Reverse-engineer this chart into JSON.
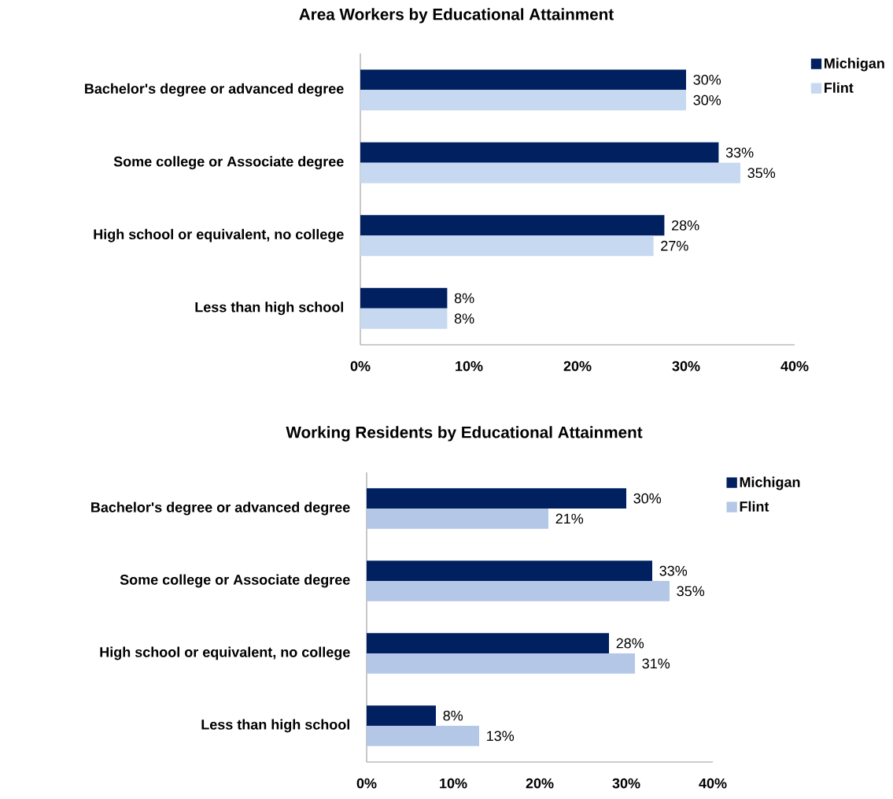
{
  "chart_data": [
    {
      "type": "bar",
      "orientation": "horizontal",
      "title": "Area Workers by Educational Attainment",
      "categories": [
        "Bachelor's degree or advanced degree",
        "Some college or Associate degree",
        "High school or equivalent, no college",
        "Less than high school"
      ],
      "series": [
        {
          "name": "Michigan",
          "color": "#002060",
          "values": [
            30,
            33,
            28,
            8
          ],
          "value_labels": [
            "30%",
            "33%",
            "28%",
            "8%"
          ]
        },
        {
          "name": "Flint",
          "color": "#c6d9f1",
          "values": [
            30,
            35,
            27,
            8
          ],
          "value_labels": [
            "30%",
            "35%",
            "27%",
            "8%"
          ]
        }
      ],
      "xlim": [
        0,
        40
      ],
      "xticks": [
        {
          "value": 0,
          "label": "0%"
        },
        {
          "value": 10,
          "label": "10%"
        },
        {
          "value": 20,
          "label": "20%"
        },
        {
          "value": 30,
          "label": "30%"
        },
        {
          "value": 40,
          "label": "40%"
        }
      ],
      "legend": "right"
    },
    {
      "type": "bar",
      "orientation": "horizontal",
      "title": "Working Residents by Educational Attainment",
      "categories": [
        "Bachelor's degree or advanced degree",
        "Some college or Associate degree",
        "High school or equivalent, no college",
        "Less than high school"
      ],
      "series": [
        {
          "name": "Michigan",
          "color": "#002060",
          "values": [
            30,
            33,
            28,
            8
          ],
          "value_labels": [
            "30%",
            "33%",
            "28%",
            "8%"
          ]
        },
        {
          "name": "Flint",
          "color": "#b4c7e7",
          "values": [
            21,
            35,
            31,
            13
          ],
          "value_labels": [
            "21%",
            "35%",
            "31%",
            "13%"
          ]
        }
      ],
      "xlim": [
        0,
        40
      ],
      "xticks": [
        {
          "value": 0,
          "label": "0%"
        },
        {
          "value": 10,
          "label": "10%"
        },
        {
          "value": 20,
          "label": "20%"
        },
        {
          "value": 30,
          "label": "30%"
        },
        {
          "value": 40,
          "label": "40%"
        }
      ],
      "legend": "right"
    }
  ]
}
